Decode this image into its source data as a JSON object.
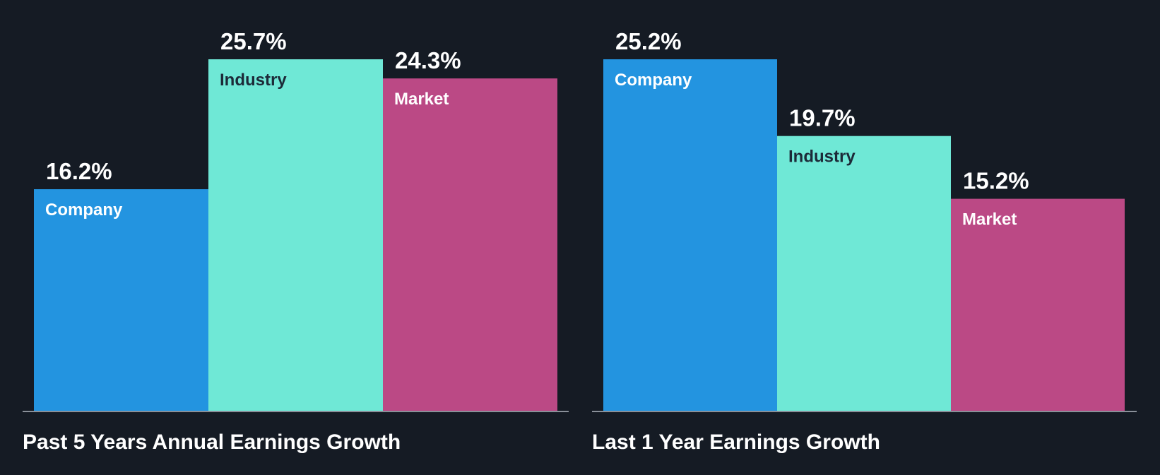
{
  "chart_data": [
    {
      "type": "bar",
      "title": "Past 5 Years Annual Earnings Growth",
      "categories": [
        "Company",
        "Industry",
        "Market"
      ],
      "values": [
        16.2,
        25.7,
        24.3
      ],
      "value_labels": [
        "16.2%",
        "25.7%",
        "24.3%"
      ],
      "colors": [
        "#2394e0",
        "#6fe8d6",
        "#bb4985"
      ],
      "label_colors": [
        "#ffffff",
        "#1c2a38",
        "#ffffff"
      ],
      "unit": "%",
      "xlabel": "",
      "ylabel": "",
      "ylim": [
        0,
        25.7
      ],
      "grid": false
    },
    {
      "type": "bar",
      "title": "Last 1 Year Earnings Growth",
      "categories": [
        "Company",
        "Industry",
        "Market"
      ],
      "values": [
        25.2,
        19.7,
        15.2
      ],
      "value_labels": [
        "25.2%",
        "19.7%",
        "15.2%"
      ],
      "colors": [
        "#2394e0",
        "#6fe8d6",
        "#bb4985"
      ],
      "label_colors": [
        "#ffffff",
        "#1c2a38",
        "#ffffff"
      ],
      "unit": "%",
      "xlabel": "",
      "ylabel": "",
      "ylim": [
        0,
        25.2
      ],
      "grid": false
    }
  ]
}
